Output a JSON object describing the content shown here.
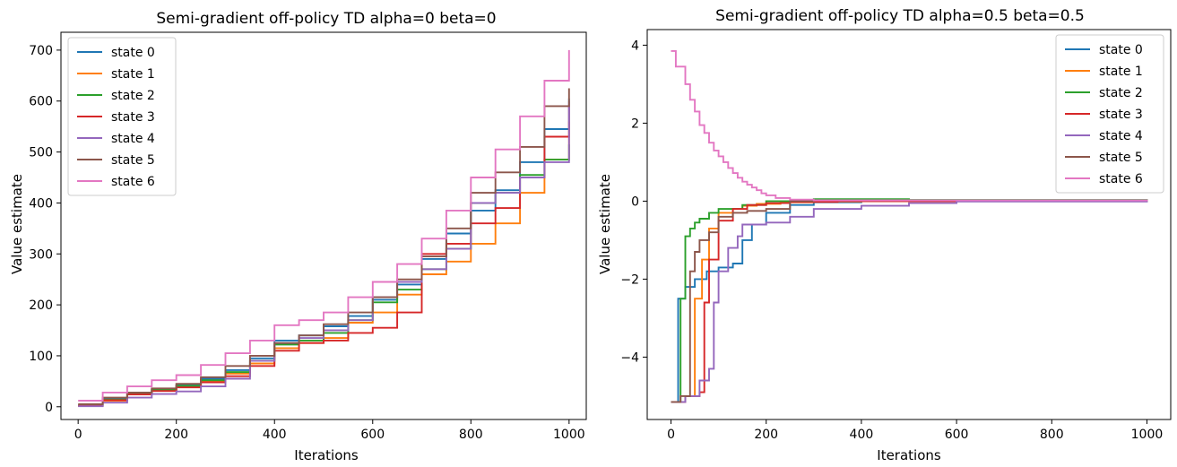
{
  "chart_data": [
    {
      "type": "line",
      "title": "Semi-gradient off-policy TD alpha=0 beta=0",
      "xlabel": "Iterations",
      "ylabel": "Value estimate",
      "xlim": [
        -35,
        1035
      ],
      "ylim": [
        -25,
        735
      ],
      "xticks": [
        0,
        200,
        400,
        600,
        800,
        1000
      ],
      "yticks": [
        0,
        100,
        200,
        300,
        400,
        500,
        600,
        700
      ],
      "grid": false,
      "legend": "upper-left",
      "step": true,
      "series": [
        {
          "name": "state 0",
          "color": "#1f77b4",
          "x": [
            0,
            50,
            100,
            150,
            200,
            250,
            300,
            350,
            400,
            450,
            500,
            550,
            600,
            650,
            700,
            750,
            800,
            850,
            900,
            950,
            1000
          ],
          "y": [
            3,
            15,
            26,
            34,
            42,
            55,
            72,
            95,
            130,
            140,
            158,
            178,
            210,
            240,
            290,
            340,
            385,
            425,
            480,
            545,
            605
          ]
        },
        {
          "name": "state 1",
          "color": "#ff7f0e",
          "x": [
            0,
            50,
            100,
            150,
            200,
            250,
            300,
            350,
            400,
            450,
            500,
            550,
            600,
            650,
            700,
            750,
            800,
            850,
            900,
            950,
            1000
          ],
          "y": [
            2,
            12,
            24,
            32,
            40,
            50,
            65,
            85,
            115,
            125,
            135,
            165,
            185,
            220,
            260,
            285,
            320,
            360,
            420,
            485,
            560
          ]
        },
        {
          "name": "state 2",
          "color": "#2ca02c",
          "x": [
            0,
            50,
            100,
            150,
            200,
            250,
            300,
            350,
            400,
            450,
            500,
            550,
            600,
            650,
            700,
            750,
            800,
            850,
            900,
            950,
            1000
          ],
          "y": [
            2,
            14,
            25,
            33,
            41,
            52,
            68,
            90,
            122,
            130,
            145,
            170,
            205,
            230,
            270,
            310,
            400,
            420,
            455,
            485,
            515
          ]
        },
        {
          "name": "state 3",
          "color": "#d62728",
          "x": [
            0,
            50,
            100,
            150,
            200,
            250,
            300,
            350,
            400,
            450,
            500,
            550,
            600,
            650,
            700,
            750,
            800,
            850,
            900,
            950,
            1000
          ],
          "y": [
            2,
            13,
            24,
            31,
            38,
            48,
            60,
            80,
            110,
            125,
            130,
            145,
            155,
            185,
            300,
            320,
            360,
            390,
            450,
            530,
            590
          ]
        },
        {
          "name": "state 4",
          "color": "#9467bd",
          "x": [
            0,
            50,
            100,
            150,
            200,
            250,
            300,
            350,
            400,
            450,
            500,
            550,
            600,
            650,
            700,
            750,
            800,
            850,
            900,
            950,
            1000
          ],
          "y": [
            1,
            8,
            18,
            25,
            30,
            40,
            55,
            90,
            125,
            135,
            150,
            170,
            215,
            245,
            270,
            310,
            400,
            420,
            450,
            480,
            600
          ]
        },
        {
          "name": "state 5",
          "color": "#8c564b",
          "x": [
            0,
            50,
            100,
            150,
            200,
            250,
            300,
            350,
            400,
            450,
            500,
            550,
            600,
            650,
            700,
            750,
            800,
            850,
            900,
            950,
            1000
          ],
          "y": [
            5,
            18,
            28,
            36,
            45,
            58,
            80,
            100,
            125,
            140,
            162,
            185,
            215,
            250,
            295,
            350,
            420,
            460,
            510,
            590,
            625
          ]
        },
        {
          "name": "state 6",
          "color": "#e377c2",
          "x": [
            0,
            50,
            100,
            150,
            200,
            250,
            300,
            350,
            400,
            450,
            500,
            550,
            600,
            650,
            700,
            750,
            800,
            850,
            900,
            950,
            1000
          ],
          "y": [
            12,
            28,
            40,
            52,
            62,
            82,
            105,
            130,
            160,
            170,
            185,
            215,
            245,
            280,
            330,
            385,
            450,
            505,
            570,
            640,
            700
          ]
        }
      ]
    },
    {
      "type": "line",
      "title": "Semi-gradient off-policy TD alpha=0.5 beta=0.5",
      "xlabel": "Iterations",
      "ylabel": "Value estimate",
      "xlim": [
        -50,
        1050
      ],
      "ylim": [
        -5.6,
        4.4
      ],
      "xticks": [
        0,
        200,
        400,
        600,
        800,
        1000
      ],
      "yticks": [
        -4,
        -2,
        0,
        2,
        4
      ],
      "grid": false,
      "legend": "upper-right",
      "step": true,
      "series": [
        {
          "name": "state 0",
          "color": "#1f77b4",
          "x": [
            0,
            15,
            30,
            50,
            75,
            100,
            130,
            150,
            170,
            200,
            250,
            300,
            400,
            1000
          ],
          "y": [
            -5.15,
            -2.5,
            -2.2,
            -2.0,
            -1.8,
            -1.7,
            -1.6,
            -1.0,
            -0.6,
            -0.3,
            -0.1,
            -0.03,
            0,
            0
          ]
        },
        {
          "name": "state 1",
          "color": "#ff7f0e",
          "x": [
            0,
            30,
            50,
            65,
            80,
            100,
            130,
            150,
            180,
            230,
            300,
            400,
            1000
          ],
          "y": [
            -5.15,
            -5.0,
            -2.5,
            -1.5,
            -0.7,
            -0.3,
            -0.2,
            -0.12,
            -0.07,
            -0.03,
            -0.01,
            0,
            0
          ]
        },
        {
          "name": "state 2",
          "color": "#2ca02c",
          "x": [
            0,
            20,
            30,
            40,
            50,
            60,
            80,
            100,
            150,
            200,
            300,
            500,
            1000
          ],
          "y": [
            -5.15,
            -2.5,
            -0.9,
            -0.7,
            -0.55,
            -0.45,
            -0.3,
            -0.2,
            -0.1,
            0.0,
            0.05,
            0.03,
            0
          ]
        },
        {
          "name": "state 3",
          "color": "#d62728",
          "x": [
            0,
            30,
            60,
            70,
            80,
            100,
            130,
            160,
            200,
            250,
            350,
            1000
          ],
          "y": [
            -5.15,
            -5.0,
            -4.9,
            -2.6,
            -1.5,
            -0.5,
            -0.2,
            -0.1,
            -0.05,
            -0.02,
            0,
            0
          ]
        },
        {
          "name": "state 4",
          "color": "#9467bd",
          "x": [
            0,
            30,
            60,
            80,
            90,
            100,
            120,
            140,
            150,
            200,
            250,
            300,
            400,
            500,
            600,
            1000
          ],
          "y": [
            -5.15,
            -5.0,
            -4.6,
            -4.3,
            -2.6,
            -1.8,
            -1.2,
            -0.9,
            -0.6,
            -0.55,
            -0.4,
            -0.2,
            -0.12,
            -0.05,
            -0.01,
            0
          ]
        },
        {
          "name": "state 5",
          "color": "#8c564b",
          "x": [
            0,
            20,
            40,
            50,
            60,
            80,
            100,
            130,
            160,
            200,
            250,
            300,
            1000
          ],
          "y": [
            -5.15,
            -5.0,
            -1.8,
            -1.3,
            -1.0,
            -0.8,
            -0.4,
            -0.3,
            -0.25,
            -0.2,
            0,
            0.02,
            0
          ]
        },
        {
          "name": "state 6",
          "color": "#e377c2",
          "x": [
            0,
            10,
            20,
            30,
            40,
            50,
            60,
            70,
            80,
            90,
            100,
            110,
            120,
            130,
            140,
            150,
            160,
            170,
            180,
            190,
            200,
            220,
            250,
            300,
            1000
          ],
          "y": [
            3.85,
            3.45,
            3.45,
            3.0,
            2.6,
            2.3,
            1.95,
            1.75,
            1.5,
            1.3,
            1.15,
            1.0,
            0.85,
            0.72,
            0.6,
            0.5,
            0.42,
            0.35,
            0.28,
            0.2,
            0.15,
            0.08,
            0.04,
            0.02,
            0
          ]
        }
      ]
    }
  ]
}
